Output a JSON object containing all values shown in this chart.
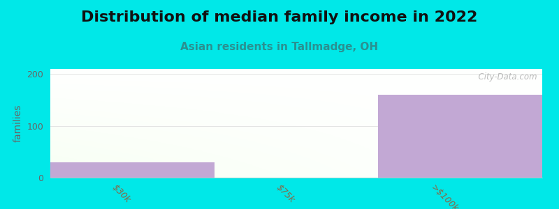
{
  "title": "Distribution of median family income in 2022",
  "subtitle": "Asian residents in Tallmadge, OH",
  "categories": [
    "$30k",
    "$75k",
    ">$100k"
  ],
  "values": [
    30,
    0,
    160
  ],
  "bar_color": "#c2a8d4",
  "bg_color_left": "#d4e8cc",
  "bg_color_right": "#f0f5e8",
  "bg_color_top": "#f8faff",
  "background_color": "#00e8e8",
  "ylabel": "families",
  "ylim": [
    0,
    210
  ],
  "yticks": [
    0,
    100,
    200
  ],
  "watermark": "  City-Data.com",
  "title_fontsize": 16,
  "subtitle_fontsize": 11,
  "subtitle_color": "#2a9090",
  "tick_label_color": "#886644",
  "ylabel_color": "#666666",
  "grid_color": "#e0e0e0"
}
